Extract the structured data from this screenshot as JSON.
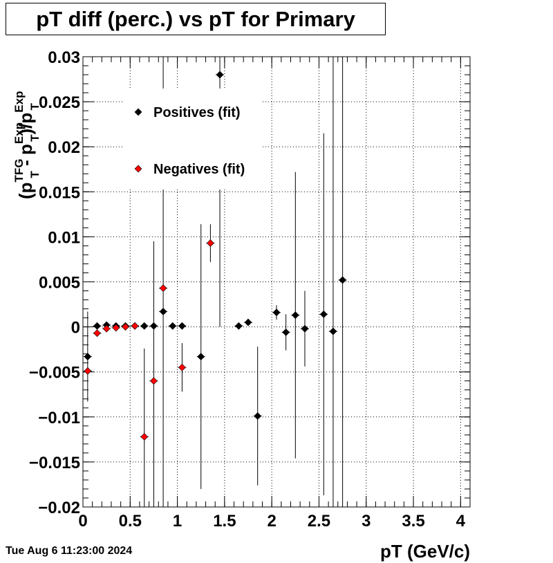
{
  "title": "pT diff (perc.) vs pT for Primary",
  "date_stamp": "Tue Aug  6 11:23:00 2024",
  "chart_data": {
    "type": "scatter",
    "title": "pT diff (perc.) vs pT for Primary",
    "xlabel": "pT (GeV/c)",
    "ylabel": "(p_T^TFG - p_T^Exp)/p_T^Exp",
    "xlim": [
      0,
      4.1
    ],
    "ylim": [
      -0.02,
      0.03
    ],
    "x_ticks": [
      "0",
      "0.5",
      "1",
      "1.5",
      "2",
      "2.5",
      "3",
      "3.5",
      "4"
    ],
    "y_ticks": [
      "−0.02",
      "−0.015",
      "−0.01",
      "−0.005",
      "0",
      "0.005",
      "0.01",
      "0.015",
      "0.02",
      "0.025",
      "0.03"
    ],
    "grid": true,
    "legend_position": "top-left",
    "series": [
      {
        "name": "Positives (fit)",
        "color": "#000000",
        "x": [
          0.05,
          0.15,
          0.25,
          0.35,
          0.45,
          0.55,
          0.65,
          0.75,
          0.85,
          0.95,
          1.05,
          1.25,
          1.45,
          1.65,
          1.75,
          1.85,
          2.05,
          2.15,
          2.25,
          2.35,
          2.55,
          2.65,
          2.75
        ],
        "y": [
          -0.0033,
          0.0001,
          0.0002,
          0.0001,
          0.0001,
          0.0001,
          0.0001,
          0.0001,
          0.0017,
          0.0001,
          0.0001,
          -0.0033,
          0.028,
          0.0001,
          0.0005,
          -0.0099,
          0.0016,
          -0.0006,
          0.0013,
          -0.0002,
          0.0014,
          -0.0005,
          0.0052
        ],
        "yerr": [
          0.005,
          0.0002,
          0.0002,
          0.0002,
          0.0002,
          0.0002,
          0.0002,
          0.0002,
          0.03,
          0.0002,
          0.0002,
          0.0147,
          0.028,
          0.0002,
          0.0002,
          0.0077,
          0.0008,
          0.002,
          0.0159,
          0.0042,
          0.0201,
          0.05,
          0.05
        ]
      },
      {
        "name": "Negatives (fit)",
        "color": "#ff0000",
        "x": [
          0.05,
          0.15,
          0.25,
          0.35,
          0.45,
          0.55,
          0.65,
          0.75,
          0.85,
          1.05,
          1.35
        ],
        "y": [
          -0.0049,
          -0.0007,
          -0.0002,
          -0.0001,
          0.0,
          0.0001,
          -0.0122,
          -0.006,
          0.0043,
          -0.0045,
          0.0093
        ],
        "yerr": [
          0.0002,
          0.0003,
          0.0002,
          0.0002,
          0.0002,
          0.0002,
          0.0098,
          0.0155,
          0.0002,
          0.0027,
          0.0021
        ]
      }
    ]
  }
}
